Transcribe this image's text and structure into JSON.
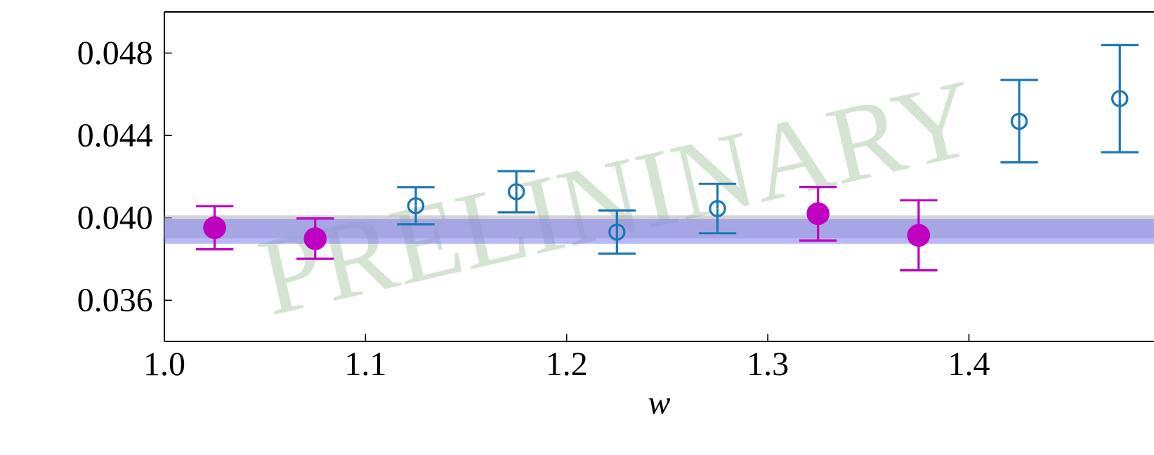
{
  "chart_data": {
    "type": "scatter",
    "xlabel": "w",
    "xlim": [
      1.0,
      1.492
    ],
    "ylim": [
      0.034,
      0.05
    ],
    "xticks": [
      {
        "value": 1.0,
        "label": "1.0"
      },
      {
        "value": 1.1,
        "label": "1.1"
      },
      {
        "value": 1.2,
        "label": "1.2"
      },
      {
        "value": 1.3,
        "label": "1.3"
      },
      {
        "value": 1.4,
        "label": "1.4"
      }
    ],
    "yticks": [
      {
        "value": 0.036,
        "label": "0.036"
      },
      {
        "value": 0.04,
        "label": "0.040"
      },
      {
        "value": 0.044,
        "label": "0.044"
      },
      {
        "value": 0.048,
        "label": "0.048"
      }
    ],
    "series": [
      {
        "color": "#c000c0",
        "marker": "circle",
        "x": [
          1.025,
          1.075,
          1.325,
          1.375
        ],
        "values": [
          0.03952,
          0.03899,
          0.0402,
          0.03915
        ],
        "errors": [
          0.00105,
          0.00098,
          0.0013,
          0.0017
        ]
      },
      {
        "color": "#1f77b4",
        "marker": "open circle",
        "x": [
          1.125,
          1.175,
          1.225,
          1.275,
          1.425,
          1.475
        ],
        "values": [
          0.04059,
          0.04127,
          0.03931,
          0.04045,
          0.04469,
          0.04579
        ],
        "errors": [
          0.0009,
          0.001,
          0.00105,
          0.0012,
          0.002,
          0.0026
        ]
      }
    ],
    "bands": [
      {
        "axis": "y",
        "from": 0.039,
        "to": 0.04012,
        "color": "#b0b0b0"
      },
      {
        "axis": "y",
        "from": 0.03874,
        "to": 0.03995,
        "color": "#8080f0"
      }
    ],
    "annotations": [
      "PRELININARY"
    ]
  }
}
